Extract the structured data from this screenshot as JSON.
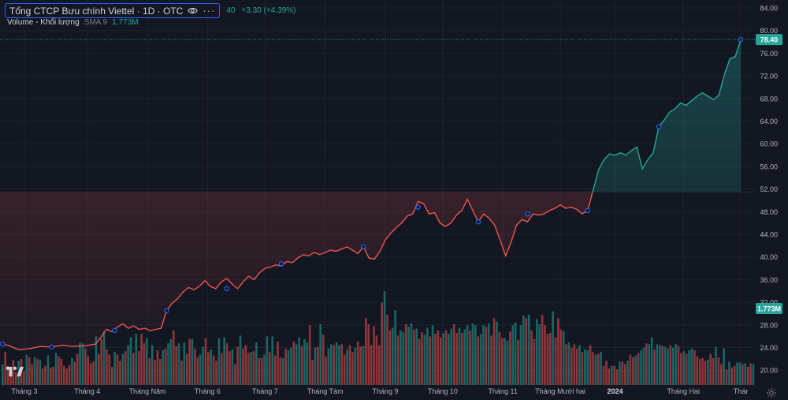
{
  "legend": {
    "symbol": "Tổng CTCP Bưu chính Viettel · 1D · OTC",
    "last_price_fragment": "40",
    "change": "+3.30 (+4.39%)",
    "volume_label": "Volume - Khối lượng",
    "sma_label": "SMA 9",
    "volume_value": "1.773M"
  },
  "badges": {
    "price": "78.40",
    "volume": "1.773M"
  },
  "icons": [
    "eye-icon",
    "more-icon",
    "tradingview-logo-icon",
    "settings-gear-icon"
  ],
  "colors": {
    "background": "#131722",
    "up": "#26a69a",
    "down": "#ef5350",
    "highlight": "#2962ff"
  },
  "chart_data": {
    "type": "line",
    "baseline": 51.5,
    "y_ticks": [
      "84.00",
      "80.00",
      "76.00",
      "72.00",
      "68.00",
      "64.00",
      "60.00",
      "56.00",
      "52.00",
      "48.00",
      "44.00",
      "40.00",
      "36.00",
      "32.00",
      "28.00",
      "24.00",
      "20.00"
    ],
    "ylim": [
      18,
      86
    ],
    "x_ticks": [
      {
        "label": "Tháng 3",
        "x": 2
      },
      {
        "label": "Tháng 4",
        "x": 25
      },
      {
        "label": "Tháng Năm",
        "x": 47
      },
      {
        "label": "Tháng 6",
        "x": 69
      },
      {
        "label": "Tháng 7",
        "x": 90
      },
      {
        "label": "Tháng Tám",
        "x": 112
      },
      {
        "label": "Tháng 9",
        "x": 134
      },
      {
        "label": "Tháng 10",
        "x": 155
      },
      {
        "label": "Tháng 11",
        "x": 177
      },
      {
        "label": "Tháng Mười hai",
        "x": 198
      },
      {
        "label": "2024",
        "x": 218
      },
      {
        "label": "Tháng Hai",
        "x": 243
      },
      {
        "label": "Thár",
        "x": 264
      }
    ],
    "price": [
      [
        -8,
        24.6
      ],
      [
        -4,
        24.4
      ],
      [
        0,
        23.6
      ],
      [
        4,
        23.8
      ],
      [
        8,
        24.2
      ],
      [
        12,
        24.1
      ],
      [
        16,
        24.4
      ],
      [
        20,
        24.2
      ],
      [
        24,
        24.3
      ],
      [
        28,
        24.6
      ],
      [
        30,
        25.8
      ],
      [
        32,
        27.2
      ],
      [
        34,
        26.8
      ],
      [
        36,
        27.6
      ],
      [
        38,
        28.2
      ],
      [
        40,
        27.4
      ],
      [
        42,
        27.8
      ],
      [
        44,
        27.2
      ],
      [
        46,
        27.4
      ],
      [
        48,
        27.0
      ],
      [
        50,
        27.2
      ],
      [
        52,
        27.4
      ],
      [
        54,
        30.5
      ],
      [
        56,
        31.8
      ],
      [
        58,
        32.6
      ],
      [
        60,
        33.8
      ],
      [
        62,
        34.6
      ],
      [
        64,
        34.2
      ],
      [
        66,
        34.8
      ],
      [
        68,
        35.8
      ],
      [
        70,
        34.8
      ],
      [
        72,
        34.4
      ],
      [
        74,
        35.6
      ],
      [
        76,
        36.2
      ],
      [
        78,
        35.2
      ],
      [
        80,
        34.4
      ],
      [
        82,
        35.6
      ],
      [
        84,
        36.6
      ],
      [
        86,
        36.0
      ],
      [
        88,
        37.2
      ],
      [
        90,
        38.0
      ],
      [
        92,
        38.2
      ],
      [
        94,
        38.6
      ],
      [
        96,
        38.4
      ],
      [
        98,
        39.2
      ],
      [
        100,
        39.0
      ],
      [
        102,
        39.8
      ],
      [
        104,
        40.4
      ],
      [
        106,
        40.2
      ],
      [
        108,
        40.8
      ],
      [
        110,
        40.4
      ],
      [
        112,
        40.8
      ],
      [
        114,
        41.2
      ],
      [
        116,
        41.0
      ],
      [
        118,
        41.4
      ],
      [
        120,
        41.8
      ],
      [
        122,
        41.2
      ],
      [
        124,
        40.6
      ],
      [
        126,
        41.8
      ],
      [
        128,
        39.8
      ],
      [
        130,
        39.6
      ],
      [
        132,
        41.0
      ],
      [
        134,
        43.0
      ],
      [
        136,
        44.2
      ],
      [
        138,
        45.2
      ],
      [
        140,
        46.0
      ],
      [
        142,
        47.2
      ],
      [
        144,
        47.6
      ],
      [
        146,
        49.8
      ],
      [
        148,
        49.4
      ],
      [
        150,
        47.6
      ],
      [
        152,
        47.8
      ],
      [
        154,
        46.0
      ],
      [
        156,
        45.4
      ],
      [
        158,
        46.0
      ],
      [
        160,
        47.4
      ],
      [
        162,
        48.2
      ],
      [
        164,
        50.2
      ],
      [
        166,
        48.2
      ],
      [
        168,
        46.2
      ],
      [
        170,
        47.6
      ],
      [
        172,
        46.8
      ],
      [
        174,
        45.6
      ],
      [
        176,
        43.0
      ],
      [
        178,
        40.2
      ],
      [
        180,
        42.6
      ],
      [
        182,
        45.6
      ],
      [
        184,
        46.6
      ],
      [
        186,
        46.2
      ],
      [
        188,
        47.6
      ],
      [
        190,
        47.4
      ],
      [
        192,
        47.6
      ],
      [
        194,
        48.2
      ],
      [
        196,
        48.6
      ],
      [
        198,
        49.2
      ],
      [
        200,
        48.6
      ],
      [
        202,
        48.8
      ],
      [
        204,
        48.4
      ],
      [
        206,
        47.6
      ],
      [
        208,
        48.2
      ],
      [
        210,
        51.8
      ],
      [
        212,
        55.4
      ],
      [
        214,
        57.2
      ],
      [
        216,
        58.2
      ],
      [
        218,
        58.0
      ],
      [
        220,
        58.4
      ],
      [
        222,
        58.0
      ],
      [
        224,
        58.8
      ],
      [
        226,
        59.4
      ],
      [
        228,
        55.6
      ],
      [
        230,
        57.2
      ],
      [
        232,
        58.4
      ],
      [
        234,
        63.0
      ],
      [
        236,
        64.2
      ],
      [
        238,
        65.6
      ],
      [
        240,
        66.2
      ],
      [
        242,
        67.2
      ],
      [
        244,
        66.8
      ],
      [
        246,
        67.6
      ],
      [
        248,
        68.4
      ],
      [
        250,
        69.0
      ],
      [
        252,
        68.4
      ],
      [
        254,
        67.8
      ],
      [
        256,
        68.6
      ],
      [
        258,
        72.2
      ],
      [
        260,
        75.0
      ],
      [
        262,
        75.4
      ],
      [
        264,
        78.4
      ]
    ],
    "markers": [
      [
        -6,
        24.6
      ],
      [
        12,
        24.1
      ],
      [
        35,
        27.0
      ],
      [
        54,
        30.5
      ],
      [
        76,
        34.4
      ],
      [
        96,
        38.8
      ],
      [
        126,
        41.8
      ],
      [
        146,
        48.8
      ],
      [
        168,
        46.2
      ],
      [
        186,
        47.6
      ],
      [
        208,
        48.2
      ],
      [
        234,
        63.0
      ],
      [
        264,
        78.4
      ]
    ],
    "last": {
      "price": 78.4,
      "volume": 1.773
    },
    "volume": [
      2.4,
      3.8,
      2.2,
      1.9,
      2.9,
      1.5,
      2.8,
      3.0,
      1.6,
      3.5,
      3.2,
      2.4,
      3.2,
      3.0,
      2.9,
      1.9,
      2.2,
      3.4,
      2.0,
      2.1,
      3.7,
      3.3,
      3.0,
      2.2,
      1.9,
      2.3,
      3.1,
      2.7,
      3.6,
      4.9,
      4.8,
      4.2,
      3.3,
      2.5,
      2.7,
      5.6,
      3.6,
      5.3,
      6.2,
      4.1,
      3.5,
      2.1,
      3.8,
      3.5,
      2.8,
      3.6,
      3.9,
      4.6,
      5.5,
      3.7,
      5.9,
      3.9,
      5.9,
      4.8,
      5.4,
      3.1,
      4.6,
      2.9,
      4.0,
      3.0,
      4.0,
      4.2,
      4.8,
      5.3,
      6.3,
      4.5,
      4.8,
      2.8,
      4.9,
      3.6,
      5.3,
      5.3,
      4.2,
      3.2,
      3.5,
      4.4,
      5.4,
      3.8,
      4.1,
      3.4,
      2.8,
      5.4,
      3.7,
      5.5,
      4.8,
      3.9,
      4.1,
      2.4,
      4.4,
      5.7,
      4.2,
      4.6,
      3.7,
      3.8,
      3.9,
      4.9,
      3.1,
      3.1,
      3.5,
      5.6,
      3.8,
      5.6,
      3.4,
      5.0,
      3.2,
      3.1,
      4.2,
      4.0,
      4.3,
      5.0,
      4.7,
      5.5,
      4.5,
      5.3,
      4.9,
      6.9,
      2.9,
      4.3,
      4.4,
      7.0,
      5.8,
      3.3,
      4.2,
      4.7,
      4.6,
      4.9,
      4.6,
      4.7,
      3.5,
      4.1,
      4.6,
      3.8,
      4.3,
      5.0,
      4.4,
      4.5,
      7.7,
      7.0,
      4.6,
      6.8,
      5.7,
      4.6,
      9.5,
      10.8,
      8.1,
      6.3,
      6.6,
      8.6,
      5.7,
      6.3,
      6.1,
      7.0,
      6.7,
      7.1,
      6.4,
      6.5,
      5.3,
      6.1,
      5.8,
      6.6,
      5.6,
      6.9,
      5.9,
      6.3,
      5.5,
      6.0,
      6.3,
      5.9,
      6.5,
      7.0,
      6.0,
      6.6,
      6.0,
      6.4,
      6.9,
      6.3,
      7.1,
      6.9,
      5.6,
      5.9,
      6.9,
      6.7,
      7.1,
      5.7,
      7.7,
      7.3,
      6.1,
      5.4,
      5.4,
      5.1,
      6.2,
      6.9,
      7.2,
      5.2,
      6.9,
      8.0,
      7.7,
      8.1,
      6.3,
      5.3,
      7.6,
      7.0,
      8.1,
      6.9,
      5.9,
      6.0,
      8.5,
      5.5,
      7.7,
      6.4,
      6.2,
      4.7,
      4.9,
      4.3,
      4.7,
      4.2,
      4.6,
      3.8,
      4.1,
      4.0,
      4.6,
      3.8,
      3.5,
      3.6,
      3.8,
      2.2,
      2.8,
      1.9,
      2.2,
      2.2,
      1.8,
      2.7,
      2.7,
      2.4,
      2.8,
      3.5,
      3.2,
      3.4,
      3.7,
      4.0,
      4.3,
      4.8,
      4.7,
      5.5,
      4.1,
      4.7,
      4.6,
      4.5,
      4.4,
      4.2,
      4.6,
      4.3,
      4.7,
      4.5,
      3.7,
      3.9,
      3.6,
      4.0,
      4.2,
      4.0,
      3.3,
      3.0,
      3.1,
      2.8,
      2.9,
      3.6,
      3.1,
      4.4,
      3.2,
      2.4,
      4.2,
      1.8,
      2.7,
      2.0,
      2.2,
      2.6,
      2.6,
      2.4,
      2.5,
      2.1,
      2.5,
      2.4
    ]
  }
}
